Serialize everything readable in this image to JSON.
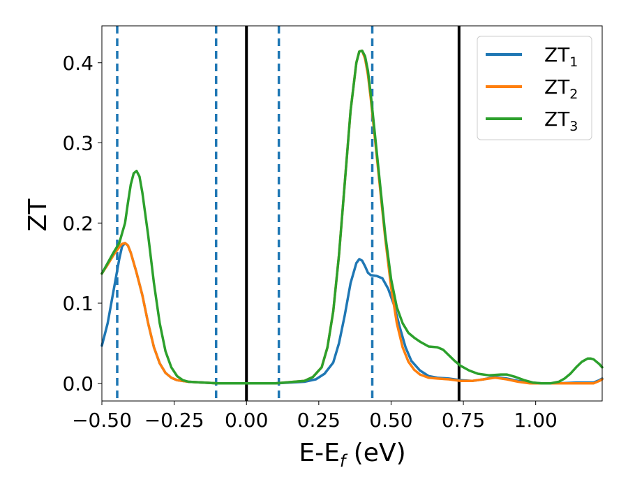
{
  "chart_data": {
    "type": "line",
    "xlabel": {
      "main": "E-E",
      "sub": "f",
      "unit": " (eV)"
    },
    "ylabel": "ZT",
    "xlim": [
      -0.5,
      1.23
    ],
    "ylim": [
      -0.022,
      0.446
    ],
    "xticks": [
      {
        "value": -0.5,
        "label": "−0.50"
      },
      {
        "value": -0.25,
        "label": "−0.25"
      },
      {
        "value": 0.0,
        "label": "0.00"
      },
      {
        "value": 0.25,
        "label": "0.25"
      },
      {
        "value": 0.5,
        "label": "0.50"
      },
      {
        "value": 0.75,
        "label": "0.75"
      },
      {
        "value": 1.0,
        "label": "1.00"
      }
    ],
    "yticks": [
      {
        "value": 0.0,
        "label": "0.0"
      },
      {
        "value": 0.1,
        "label": "0.1"
      },
      {
        "value": 0.2,
        "label": "0.2"
      },
      {
        "value": 0.3,
        "label": "0.3"
      },
      {
        "value": 0.4,
        "label": "0.4"
      }
    ],
    "grid": false,
    "legend_position": "top-right",
    "series": [
      {
        "name": "ZT",
        "sub": "1",
        "color": "#1f77b4",
        "points": [
          [
            -0.5,
            0.047
          ],
          [
            -0.48,
            0.075
          ],
          [
            -0.46,
            0.115
          ],
          [
            -0.44,
            0.155
          ],
          [
            -0.43,
            0.171
          ],
          [
            -0.42,
            0.175
          ],
          [
            -0.41,
            0.172
          ],
          [
            -0.4,
            0.163
          ],
          [
            -0.38,
            0.138
          ],
          [
            -0.36,
            0.11
          ],
          [
            -0.34,
            0.075
          ],
          [
            -0.32,
            0.045
          ],
          [
            -0.3,
            0.025
          ],
          [
            -0.28,
            0.013
          ],
          [
            -0.26,
            0.007
          ],
          [
            -0.24,
            0.004
          ],
          [
            -0.2,
            0.002
          ],
          [
            -0.15,
            0.001
          ],
          [
            -0.1,
            0.0
          ],
          [
            0.0,
            0.0
          ],
          [
            0.1,
            0.0
          ],
          [
            0.2,
            0.002
          ],
          [
            0.24,
            0.005
          ],
          [
            0.27,
            0.012
          ],
          [
            0.3,
            0.026
          ],
          [
            0.32,
            0.05
          ],
          [
            0.34,
            0.085
          ],
          [
            0.36,
            0.125
          ],
          [
            0.38,
            0.15
          ],
          [
            0.39,
            0.155
          ],
          [
            0.4,
            0.153
          ],
          [
            0.41,
            0.146
          ],
          [
            0.42,
            0.138
          ],
          [
            0.43,
            0.135
          ],
          [
            0.45,
            0.134
          ],
          [
            0.47,
            0.131
          ],
          [
            0.49,
            0.118
          ],
          [
            0.51,
            0.098
          ],
          [
            0.53,
            0.07
          ],
          [
            0.55,
            0.045
          ],
          [
            0.57,
            0.028
          ],
          [
            0.6,
            0.016
          ],
          [
            0.63,
            0.009
          ],
          [
            0.66,
            0.007
          ],
          [
            0.7,
            0.006
          ],
          [
            0.74,
            0.004
          ],
          [
            0.78,
            0.003
          ],
          [
            0.82,
            0.005
          ],
          [
            0.86,
            0.008
          ],
          [
            0.9,
            0.006
          ],
          [
            0.94,
            0.003
          ],
          [
            0.98,
            0.001
          ],
          [
            1.02,
            0.0
          ],
          [
            1.08,
            0.0
          ],
          [
            1.14,
            0.001
          ],
          [
            1.18,
            0.001
          ],
          [
            1.2,
            0.001
          ],
          [
            1.22,
            0.004
          ],
          [
            1.23,
            0.006
          ]
        ]
      },
      {
        "name": "ZT",
        "sub": "2",
        "color": "#ff7f0e",
        "points": [
          [
            -0.5,
            0.137
          ],
          [
            -0.48,
            0.148
          ],
          [
            -0.46,
            0.16
          ],
          [
            -0.44,
            0.17
          ],
          [
            -0.43,
            0.174
          ],
          [
            -0.42,
            0.175
          ],
          [
            -0.41,
            0.172
          ],
          [
            -0.4,
            0.163
          ],
          [
            -0.38,
            0.138
          ],
          [
            -0.36,
            0.11
          ],
          [
            -0.34,
            0.075
          ],
          [
            -0.32,
            0.045
          ],
          [
            -0.3,
            0.025
          ],
          [
            -0.28,
            0.013
          ],
          [
            -0.26,
            0.007
          ],
          [
            -0.24,
            0.004
          ],
          [
            -0.2,
            0.002
          ],
          [
            -0.15,
            0.001
          ],
          [
            -0.1,
            0.0
          ],
          [
            0.0,
            0.0
          ],
          [
            0.1,
            0.0
          ],
          [
            0.2,
            0.003
          ],
          [
            0.23,
            0.008
          ],
          [
            0.26,
            0.02
          ],
          [
            0.28,
            0.045
          ],
          [
            0.3,
            0.09
          ],
          [
            0.32,
            0.16
          ],
          [
            0.34,
            0.25
          ],
          [
            0.36,
            0.34
          ],
          [
            0.38,
            0.4
          ],
          [
            0.39,
            0.414
          ],
          [
            0.4,
            0.415
          ],
          [
            0.41,
            0.405
          ],
          [
            0.42,
            0.385
          ],
          [
            0.43,
            0.355
          ],
          [
            0.44,
            0.32
          ],
          [
            0.46,
            0.25
          ],
          [
            0.48,
            0.18
          ],
          [
            0.5,
            0.12
          ],
          [
            0.52,
            0.075
          ],
          [
            0.54,
            0.045
          ],
          [
            0.56,
            0.027
          ],
          [
            0.58,
            0.017
          ],
          [
            0.6,
            0.011
          ],
          [
            0.63,
            0.007
          ],
          [
            0.66,
            0.006
          ],
          [
            0.7,
            0.005
          ],
          [
            0.74,
            0.003
          ],
          [
            0.78,
            0.003
          ],
          [
            0.82,
            0.005
          ],
          [
            0.86,
            0.007
          ],
          [
            0.9,
            0.005
          ],
          [
            0.94,
            0.002
          ],
          [
            0.98,
            0.0
          ],
          [
            1.02,
            0.0
          ],
          [
            1.08,
            0.0
          ],
          [
            1.14,
            0.0
          ],
          [
            1.18,
            0.0
          ],
          [
            1.2,
            0.0
          ],
          [
            1.22,
            0.003
          ],
          [
            1.23,
            0.005
          ]
        ]
      },
      {
        "name": "ZT",
        "sub": "3",
        "color": "#2ca02c",
        "points": [
          [
            -0.5,
            0.137
          ],
          [
            -0.48,
            0.15
          ],
          [
            -0.46,
            0.163
          ],
          [
            -0.44,
            0.175
          ],
          [
            -0.42,
            0.2
          ],
          [
            -0.41,
            0.225
          ],
          [
            -0.4,
            0.248
          ],
          [
            -0.39,
            0.262
          ],
          [
            -0.38,
            0.265
          ],
          [
            -0.37,
            0.258
          ],
          [
            -0.36,
            0.238
          ],
          [
            -0.34,
            0.185
          ],
          [
            -0.32,
            0.125
          ],
          [
            -0.3,
            0.075
          ],
          [
            -0.28,
            0.04
          ],
          [
            -0.26,
            0.02
          ],
          [
            -0.24,
            0.009
          ],
          [
            -0.22,
            0.004
          ],
          [
            -0.2,
            0.002
          ],
          [
            -0.15,
            0.001
          ],
          [
            -0.1,
            0.0
          ],
          [
            0.0,
            0.0
          ],
          [
            0.1,
            0.0
          ],
          [
            0.2,
            0.003
          ],
          [
            0.23,
            0.008
          ],
          [
            0.26,
            0.02
          ],
          [
            0.28,
            0.045
          ],
          [
            0.3,
            0.09
          ],
          [
            0.32,
            0.16
          ],
          [
            0.34,
            0.25
          ],
          [
            0.36,
            0.34
          ],
          [
            0.38,
            0.4
          ],
          [
            0.39,
            0.414
          ],
          [
            0.4,
            0.415
          ],
          [
            0.41,
            0.408
          ],
          [
            0.42,
            0.39
          ],
          [
            0.43,
            0.36
          ],
          [
            0.44,
            0.325
          ],
          [
            0.46,
            0.255
          ],
          [
            0.48,
            0.185
          ],
          [
            0.5,
            0.13
          ],
          [
            0.52,
            0.095
          ],
          [
            0.54,
            0.075
          ],
          [
            0.56,
            0.063
          ],
          [
            0.58,
            0.057
          ],
          [
            0.6,
            0.052
          ],
          [
            0.63,
            0.046
          ],
          [
            0.66,
            0.045
          ],
          [
            0.68,
            0.042
          ],
          [
            0.7,
            0.035
          ],
          [
            0.72,
            0.028
          ],
          [
            0.74,
            0.022
          ],
          [
            0.77,
            0.016
          ],
          [
            0.8,
            0.012
          ],
          [
            0.84,
            0.01
          ],
          [
            0.88,
            0.011
          ],
          [
            0.9,
            0.011
          ],
          [
            0.93,
            0.008
          ],
          [
            0.96,
            0.004
          ],
          [
            0.99,
            0.001
          ],
          [
            1.02,
            0.0
          ],
          [
            1.05,
            0.0
          ],
          [
            1.08,
            0.002
          ],
          [
            1.1,
            0.006
          ],
          [
            1.12,
            0.012
          ],
          [
            1.14,
            0.02
          ],
          [
            1.16,
            0.027
          ],
          [
            1.18,
            0.031
          ],
          [
            1.19,
            0.031
          ],
          [
            1.2,
            0.03
          ],
          [
            1.22,
            0.024
          ],
          [
            1.23,
            0.02
          ]
        ]
      }
    ],
    "vlines": [
      {
        "x": -0.447,
        "style": "dashed",
        "color": "#1f77b4"
      },
      {
        "x": -0.105,
        "style": "dashed",
        "color": "#1f77b4"
      },
      {
        "x": 0.0,
        "style": "solid",
        "color": "#000000"
      },
      {
        "x": 0.112,
        "style": "dashed",
        "color": "#1f77b4"
      },
      {
        "x": 0.435,
        "style": "dashed",
        "color": "#1f77b4"
      },
      {
        "x": 0.735,
        "style": "solid",
        "color": "#000000"
      }
    ]
  }
}
